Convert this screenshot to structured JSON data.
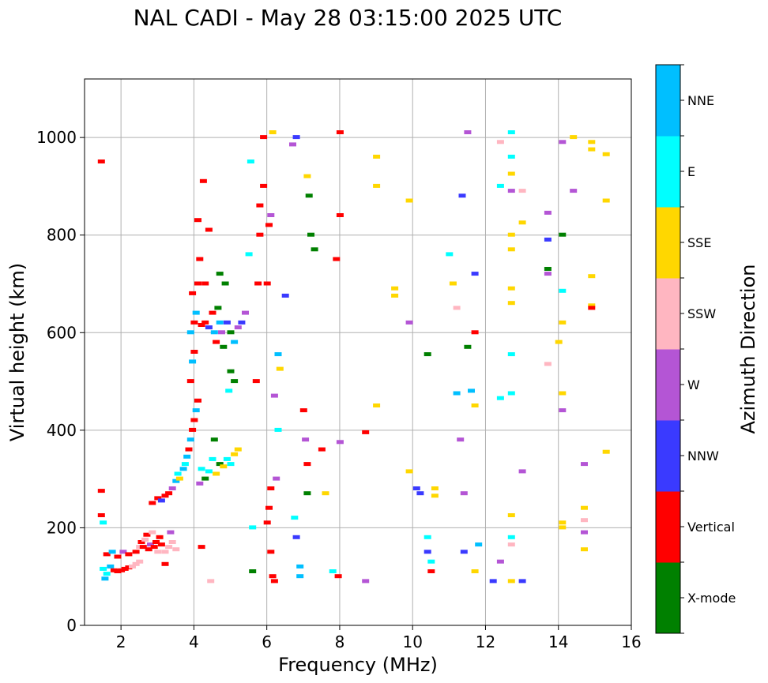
{
  "chart_data": {
    "type": "scatter",
    "title": "NAL CADI - May 28 03:15:00 2025 UTC",
    "xlabel": "Frequency (MHz)",
    "ylabel": "Virtual height (km)",
    "colorbar_label": "Azimuth Direction",
    "xlim": [
      1,
      16
    ],
    "ylim": [
      0,
      1120
    ],
    "xticks": [
      2,
      4,
      6,
      8,
      10,
      12,
      14,
      16
    ],
    "yticks": [
      0,
      200,
      400,
      600,
      800,
      1000
    ],
    "grid": true,
    "categories": [
      {
        "name": "X-mode",
        "color": "#008000"
      },
      {
        "name": "Vertical",
        "color": "#ff0000"
      },
      {
        "name": "NNW",
        "color": "#3a3aff"
      },
      {
        "name": "W",
        "color": "#b455d5"
      },
      {
        "name": "SSW",
        "color": "#ffb6c1"
      },
      {
        "name": "SSE",
        "color": "#ffd700"
      },
      {
        "name": "E",
        "color": "#00ffff"
      },
      {
        "name": "NNE",
        "color": "#00bfff"
      }
    ],
    "points": [
      [
        1.45,
        275,
        "Vertical"
      ],
      [
        1.45,
        225,
        "Vertical"
      ],
      [
        1.5,
        210,
        "E"
      ],
      [
        1.45,
        950,
        "Vertical"
      ],
      [
        1.5,
        115,
        "E"
      ],
      [
        1.55,
        95,
        "NNE"
      ],
      [
        1.6,
        105,
        "E"
      ],
      [
        1.7,
        120,
        "NNE"
      ],
      [
        1.8,
        112,
        "Vertical"
      ],
      [
        1.9,
        110,
        "Vertical"
      ],
      [
        2.0,
        112,
        "Vertical"
      ],
      [
        2.1,
        115,
        "Vertical"
      ],
      [
        2.2,
        118,
        "Vertical"
      ],
      [
        2.3,
        120,
        "SSW"
      ],
      [
        2.4,
        125,
        "SSW"
      ],
      [
        2.5,
        130,
        "SSW"
      ],
      [
        1.6,
        145,
        "Vertical"
      ],
      [
        1.75,
        150,
        "NNE"
      ],
      [
        1.9,
        140,
        "Vertical"
      ],
      [
        2.05,
        150,
        "W"
      ],
      [
        2.2,
        145,
        "Vertical"
      ],
      [
        2.4,
        150,
        "Vertical"
      ],
      [
        2.5,
        160,
        "SSW"
      ],
      [
        2.55,
        170,
        "Vertical"
      ],
      [
        2.6,
        160,
        "Vertical"
      ],
      [
        2.65,
        175,
        "SSW"
      ],
      [
        2.7,
        185,
        "Vertical"
      ],
      [
        2.75,
        155,
        "Vertical"
      ],
      [
        2.8,
        165,
        "W"
      ],
      [
        2.85,
        190,
        "SSW"
      ],
      [
        2.9,
        160,
        "Vertical"
      ],
      [
        2.95,
        170,
        "Vertical"
      ],
      [
        3.0,
        150,
        "SSW"
      ],
      [
        3.05,
        180,
        "Vertical"
      ],
      [
        3.1,
        165,
        "Vertical"
      ],
      [
        3.2,
        150,
        "SSW"
      ],
      [
        3.3,
        160,
        "SSW"
      ],
      [
        3.4,
        170,
        "SSW"
      ],
      [
        3.5,
        155,
        "SSW"
      ],
      [
        3.35,
        190,
        "W"
      ],
      [
        3.2,
        125,
        "Vertical"
      ],
      [
        2.85,
        250,
        "Vertical"
      ],
      [
        3.0,
        260,
        "Vertical"
      ],
      [
        3.1,
        255,
        "NNW"
      ],
      [
        3.2,
        265,
        "Vertical"
      ],
      [
        3.3,
        270,
        "Vertical"
      ],
      [
        3.4,
        280,
        "W"
      ],
      [
        3.5,
        295,
        "NNE"
      ],
      [
        3.55,
        310,
        "E"
      ],
      [
        3.6,
        300,
        "SSE"
      ],
      [
        3.7,
        320,
        "NNE"
      ],
      [
        3.75,
        330,
        "E"
      ],
      [
        3.8,
        345,
        "NNE"
      ],
      [
        3.85,
        360,
        "Vertical"
      ],
      [
        3.9,
        380,
        "NNE"
      ],
      [
        3.95,
        400,
        "Vertical"
      ],
      [
        4.0,
        420,
        "Vertical"
      ],
      [
        4.05,
        440,
        "NNE"
      ],
      [
        4.1,
        460,
        "Vertical"
      ],
      [
        3.9,
        500,
        "Vertical"
      ],
      [
        3.95,
        540,
        "NNE"
      ],
      [
        4.0,
        560,
        "Vertical"
      ],
      [
        3.9,
        600,
        "NNE"
      ],
      [
        4.0,
        620,
        "Vertical"
      ],
      [
        4.05,
        640,
        "NNE"
      ],
      [
        3.95,
        680,
        "Vertical"
      ],
      [
        4.1,
        700,
        "Vertical"
      ],
      [
        4.2,
        615,
        "Vertical"
      ],
      [
        4.3,
        620,
        "Vertical"
      ],
      [
        4.4,
        610,
        "NNW"
      ],
      [
        4.5,
        640,
        "Vertical"
      ],
      [
        4.55,
        600,
        "NNE"
      ],
      [
        4.6,
        580,
        "Vertical"
      ],
      [
        4.65,
        650,
        "X-mode"
      ],
      [
        4.7,
        620,
        "NNE"
      ],
      [
        4.75,
        600,
        "W"
      ],
      [
        4.8,
        570,
        "X-mode"
      ],
      [
        4.9,
        620,
        "NNW"
      ],
      [
        5.0,
        600,
        "X-mode"
      ],
      [
        5.1,
        580,
        "NNE"
      ],
      [
        5.2,
        610,
        "W"
      ],
      [
        5.3,
        620,
        "NNW"
      ],
      [
        5.4,
        640,
        "W"
      ],
      [
        5.0,
        520,
        "X-mode"
      ],
      [
        4.95,
        480,
        "E"
      ],
      [
        5.1,
        500,
        "X-mode"
      ],
      [
        4.85,
        700,
        "X-mode"
      ],
      [
        4.7,
        720,
        "X-mode"
      ],
      [
        4.3,
        700,
        "Vertical"
      ],
      [
        4.15,
        750,
        "Vertical"
      ],
      [
        4.1,
        830,
        "Vertical"
      ],
      [
        4.4,
        810,
        "Vertical"
      ],
      [
        4.25,
        910,
        "Vertical"
      ],
      [
        4.2,
        320,
        "E"
      ],
      [
        4.3,
        300,
        "X-mode"
      ],
      [
        4.4,
        315,
        "E"
      ],
      [
        4.5,
        340,
        "E"
      ],
      [
        4.55,
        380,
        "X-mode"
      ],
      [
        4.6,
        310,
        "SSE"
      ],
      [
        4.7,
        330,
        "X-mode"
      ],
      [
        4.8,
        325,
        "SSE"
      ],
      [
        4.9,
        340,
        "E"
      ],
      [
        5.0,
        330,
        "E"
      ],
      [
        5.1,
        350,
        "SSE"
      ],
      [
        5.2,
        360,
        "SSE"
      ],
      [
        4.15,
        290,
        "W"
      ],
      [
        4.2,
        160,
        "Vertical"
      ],
      [
        4.45,
        90,
        "SSW"
      ],
      [
        5.5,
        760,
        "E"
      ],
      [
        5.55,
        950,
        "E"
      ],
      [
        5.6,
        200,
        "E"
      ],
      [
        5.6,
        110,
        "X-mode"
      ],
      [
        5.7,
        500,
        "Vertical"
      ],
      [
        5.75,
        700,
        "Vertical"
      ],
      [
        5.8,
        800,
        "Vertical"
      ],
      [
        5.8,
        860,
        "Vertical"
      ],
      [
        5.9,
        900,
        "Vertical"
      ],
      [
        5.9,
        1000,
        "Vertical"
      ],
      [
        6.0,
        210,
        "Vertical"
      ],
      [
        6.05,
        240,
        "Vertical"
      ],
      [
        6.1,
        280,
        "Vertical"
      ],
      [
        6.1,
        150,
        "Vertical"
      ],
      [
        6.15,
        100,
        "Vertical"
      ],
      [
        6.2,
        90,
        "Vertical"
      ],
      [
        6.0,
        700,
        "Vertical"
      ],
      [
        6.05,
        820,
        "Vertical"
      ],
      [
        6.1,
        840,
        "W"
      ],
      [
        6.15,
        1010,
        "SSE"
      ],
      [
        6.2,
        470,
        "W"
      ],
      [
        6.25,
        300,
        "W"
      ],
      [
        6.3,
        555,
        "NNE"
      ],
      [
        6.35,
        525,
        "SSE"
      ],
      [
        6.3,
        400,
        "E"
      ],
      [
        6.5,
        675,
        "NNW"
      ],
      [
        6.7,
        985,
        "W"
      ],
      [
        6.8,
        1000,
        "NNW"
      ],
      [
        6.75,
        220,
        "E"
      ],
      [
        6.8,
        180,
        "NNW"
      ],
      [
        6.9,
        120,
        "NNE"
      ],
      [
        6.9,
        100,
        "NNE"
      ],
      [
        7.0,
        440,
        "Vertical"
      ],
      [
        7.05,
        380,
        "W"
      ],
      [
        7.1,
        330,
        "Vertical"
      ],
      [
        7.1,
        270,
        "X-mode"
      ],
      [
        7.1,
        920,
        "SSE"
      ],
      [
        7.15,
        880,
        "X-mode"
      ],
      [
        7.2,
        800,
        "X-mode"
      ],
      [
        7.3,
        770,
        "X-mode"
      ],
      [
        7.5,
        360,
        "Vertical"
      ],
      [
        7.6,
        270,
        "SSE"
      ],
      [
        7.8,
        110,
        "E"
      ],
      [
        7.9,
        750,
        "Vertical"
      ],
      [
        8.0,
        1010,
        "Vertical"
      ],
      [
        8.0,
        840,
        "Vertical"
      ],
      [
        8.0,
        375,
        "W"
      ],
      [
        7.95,
        100,
        "Vertical"
      ],
      [
        8.7,
        395,
        "Vertical"
      ],
      [
        8.7,
        90,
        "W"
      ],
      [
        9.0,
        960,
        "SSE"
      ],
      [
        9.0,
        900,
        "SSE"
      ],
      [
        9.0,
        450,
        "SSE"
      ],
      [
        9.5,
        690,
        "SSE"
      ],
      [
        9.5,
        675,
        "SSE"
      ],
      [
        9.9,
        870,
        "SSE"
      ],
      [
        9.9,
        620,
        "W"
      ],
      [
        9.9,
        315,
        "SSE"
      ],
      [
        10.1,
        280,
        "NNW"
      ],
      [
        10.2,
        270,
        "NNW"
      ],
      [
        10.4,
        555,
        "X-mode"
      ],
      [
        10.4,
        180,
        "E"
      ],
      [
        10.4,
        150,
        "NNW"
      ],
      [
        10.5,
        130,
        "E"
      ],
      [
        10.5,
        110,
        "Vertical"
      ],
      [
        10.6,
        280,
        "SSE"
      ],
      [
        10.6,
        265,
        "SSE"
      ],
      [
        11.0,
        760,
        "E"
      ],
      [
        11.1,
        700,
        "SSE"
      ],
      [
        11.2,
        650,
        "SSW"
      ],
      [
        11.2,
        475,
        "NNE"
      ],
      [
        11.3,
        380,
        "W"
      ],
      [
        11.35,
        880,
        "NNW"
      ],
      [
        11.4,
        270,
        "W"
      ],
      [
        11.4,
        150,
        "NNW"
      ],
      [
        11.5,
        1010,
        "W"
      ],
      [
        11.5,
        570,
        "X-mode"
      ],
      [
        11.6,
        480,
        "NNE"
      ],
      [
        11.7,
        720,
        "NNW"
      ],
      [
        11.7,
        600,
        "Vertical"
      ],
      [
        11.7,
        450,
        "SSE"
      ],
      [
        11.7,
        110,
        "SSE"
      ],
      [
        11.8,
        165,
        "NNE"
      ],
      [
        12.2,
        90,
        "NNW"
      ],
      [
        12.4,
        990,
        "SSW"
      ],
      [
        12.4,
        900,
        "E"
      ],
      [
        12.4,
        465,
        "E"
      ],
      [
        12.4,
        130,
        "W"
      ],
      [
        12.7,
        1010,
        "E"
      ],
      [
        12.7,
        960,
        "E"
      ],
      [
        12.7,
        925,
        "SSE"
      ],
      [
        12.7,
        890,
        "W"
      ],
      [
        12.7,
        800,
        "SSE"
      ],
      [
        12.7,
        770,
        "SSE"
      ],
      [
        12.7,
        690,
        "SSE"
      ],
      [
        12.7,
        660,
        "SSE"
      ],
      [
        12.7,
        555,
        "E"
      ],
      [
        12.7,
        475,
        "E"
      ],
      [
        12.7,
        225,
        "SSE"
      ],
      [
        12.7,
        180,
        "E"
      ],
      [
        12.7,
        165,
        "SSW"
      ],
      [
        12.7,
        90,
        "SSE"
      ],
      [
        13.0,
        825,
        "SSE"
      ],
      [
        13.0,
        890,
        "SSW"
      ],
      [
        13.0,
        315,
        "W"
      ],
      [
        13.0,
        90,
        "NNW"
      ],
      [
        13.7,
        845,
        "W"
      ],
      [
        13.7,
        790,
        "NNW"
      ],
      [
        13.7,
        730,
        "X-mode"
      ],
      [
        13.7,
        720,
        "W"
      ],
      [
        13.7,
        535,
        "SSW"
      ],
      [
        14.0,
        580,
        "SSE"
      ],
      [
        14.1,
        800,
        "X-mode"
      ],
      [
        14.1,
        685,
        "E"
      ],
      [
        14.1,
        620,
        "SSE"
      ],
      [
        14.1,
        475,
        "SSE"
      ],
      [
        14.1,
        440,
        "W"
      ],
      [
        14.1,
        210,
        "SSE"
      ],
      [
        14.1,
        200,
        "SSE"
      ],
      [
        14.1,
        990,
        "W"
      ],
      [
        14.4,
        890,
        "W"
      ],
      [
        14.4,
        1000,
        "SSE"
      ],
      [
        14.7,
        330,
        "W"
      ],
      [
        14.7,
        240,
        "SSE"
      ],
      [
        14.7,
        215,
        "SSW"
      ],
      [
        14.7,
        190,
        "W"
      ],
      [
        14.7,
        155,
        "SSE"
      ],
      [
        14.9,
        990,
        "SSE"
      ],
      [
        14.9,
        975,
        "SSE"
      ],
      [
        14.9,
        715,
        "SSE"
      ],
      [
        14.9,
        655,
        "SSE"
      ],
      [
        14.9,
        650,
        "Vertical"
      ],
      [
        15.3,
        965,
        "SSE"
      ],
      [
        15.3,
        870,
        "SSE"
      ],
      [
        15.3,
        355,
        "SSE"
      ]
    ]
  }
}
